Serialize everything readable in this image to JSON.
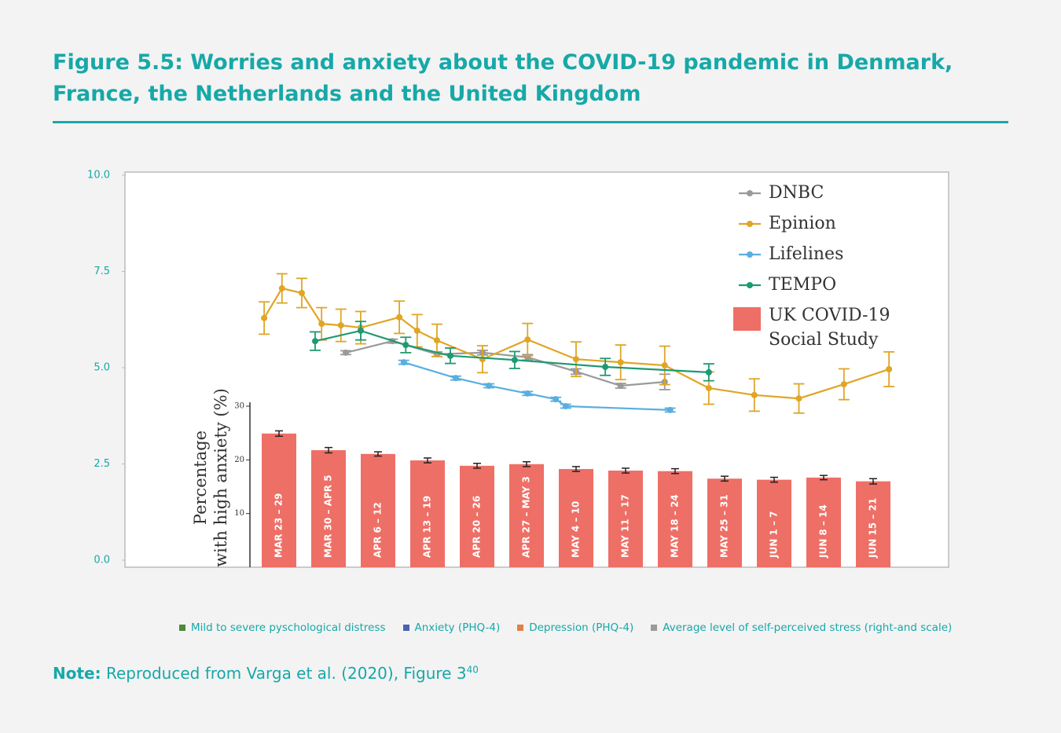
{
  "figure_title": "Figure 5.5: Worries and anxiety about the COVID-19 pandemic in Denmark, France, the Netherlands and the United Kingdom",
  "chart_data": {
    "type": "line",
    "ylim": [
      0,
      10
    ],
    "yticks": [
      {
        "value": 0,
        "label": "0.0"
      },
      {
        "value": 2.5,
        "label": "2.5"
      },
      {
        "value": 5,
        "label": "5.0"
      },
      {
        "value": 7.5,
        "label": "7.5"
      },
      {
        "value": 10,
        "label": "10.0"
      }
    ],
    "y2lim": [
      0,
      30
    ],
    "y2ticks": [
      10,
      20,
      30
    ],
    "y2_label": [
      "Percentage",
      "with high anxiety (%)"
    ],
    "categories": [
      "MAR 23 – 29",
      "MAR 30 – APR 5",
      "APR 6 – 12",
      "APR 13 – 19",
      "APR 20 – 26",
      "APR 27 – MAY 3",
      "MAY 4 – 10",
      "MAY 11 – 17",
      "MAY 18 – 24",
      "MAY 25 – 31",
      "JUN 1 – 7",
      "JUN 8 – 14",
      "JUN 15 – 21"
    ],
    "series": [
      {
        "name": "DNBC",
        "color": "#9a9a9a",
        "x": [
          1.35,
          2.29,
          3.19,
          4.11,
          5.02,
          6.0,
          6.9,
          7.79
        ],
        "values": [
          5.39,
          5.69,
          5.35,
          5.39,
          5.27,
          4.9,
          4.53,
          4.63
        ],
        "errors": [
          0.05,
          0.05,
          0.06,
          0.06,
          0.07,
          0.07,
          0.06,
          0.2
        ]
      },
      {
        "name": "Epinion",
        "color": "#e0a526",
        "x": [
          -0.3,
          0.06,
          0.46,
          0.86,
          1.25,
          1.65,
          2.43,
          2.79,
          3.19,
          4.11,
          5.02,
          6.0,
          6.9,
          7.79,
          8.68,
          9.6,
          10.5,
          11.41,
          12.32
        ],
        "values": [
          6.29,
          7.06,
          6.94,
          6.14,
          6.1,
          6.04,
          6.31,
          5.96,
          5.71,
          5.22,
          5.73,
          5.22,
          5.14,
          5.06,
          4.47,
          4.29,
          4.2,
          4.57,
          4.96
        ],
        "errors": [
          0.42,
          0.38,
          0.38,
          0.42,
          0.42,
          0.42,
          0.42,
          0.42,
          0.42,
          0.35,
          0.42,
          0.45,
          0.45,
          0.5,
          0.42,
          0.42,
          0.38,
          0.4,
          0.45
        ]
      },
      {
        "name": "Lifelines",
        "color": "#5aaee0",
        "x": [
          2.52,
          3.57,
          4.24,
          5.02,
          5.59,
          5.79,
          7.9
        ],
        "values": [
          5.14,
          4.73,
          4.53,
          4.33,
          4.18,
          4.0,
          3.9
        ],
        "errors": [
          0.05,
          0.05,
          0.05,
          0.05,
          0.05,
          0.05,
          0.05
        ]
      },
      {
        "name": "TEMPO",
        "color": "#1e9a73",
        "x": [
          0.73,
          1.65,
          2.56,
          3.46,
          4.76,
          6.59,
          8.68
        ],
        "values": [
          5.69,
          5.96,
          5.59,
          5.31,
          5.2,
          5.02,
          4.88
        ],
        "errors": [
          0.24,
          0.24,
          0.2,
          0.2,
          0.22,
          0.22,
          0.22
        ]
      },
      {
        "name": "UK COVID-19 Social Study",
        "type": "bar",
        "axis": "y2",
        "color": "#ee6f66",
        "values": [
          24.9,
          21.8,
          21.1,
          19.9,
          18.9,
          19.2,
          18.3,
          18.0,
          17.9,
          16.5,
          16.3,
          16.7,
          16.0
        ],
        "errors": [
          0.5,
          0.5,
          0.4,
          0.45,
          0.45,
          0.45,
          0.45,
          0.45,
          0.45,
          0.45,
          0.45,
          0.4,
          0.5
        ]
      }
    ],
    "legend_items": [
      {
        "name": "Mild to severe pyschological distress",
        "color": "#4a8a3a"
      },
      {
        "name": "Anxiety (PHQ-4)",
        "color": "#4a62b0"
      },
      {
        "name": "Depression (PHQ-4)",
        "color": "#e0804a"
      },
      {
        "name": "Average level of self-perceived stress (right-and scale)",
        "color": "#9a9a9a"
      }
    ]
  },
  "note": {
    "label": "Note:",
    "text": "Reproduced from Varga et al. (2020), Figure 3",
    "superscript": "40"
  }
}
